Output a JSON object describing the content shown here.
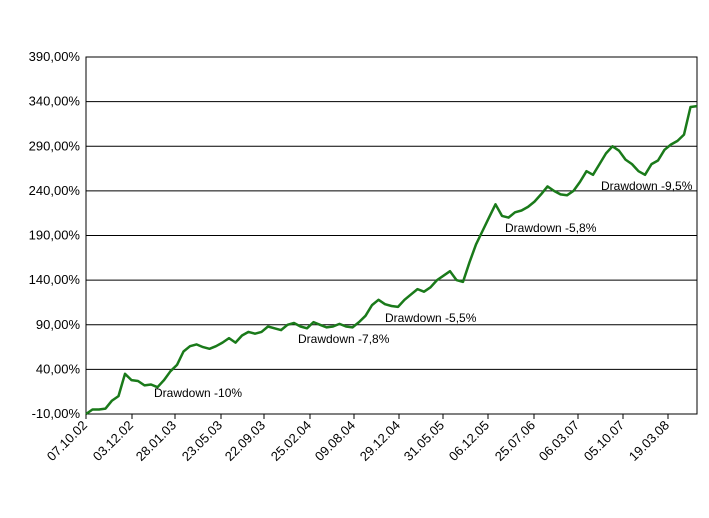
{
  "chart_data": {
    "type": "line",
    "title": "",
    "xlabel": "",
    "ylabel": "",
    "ylim": [
      -10,
      390
    ],
    "y_ticks": [
      "-10,00%",
      "40,00%",
      "90,00%",
      "140,00%",
      "190,00%",
      "240,00%",
      "290,00%",
      "340,00%",
      "390,00%"
    ],
    "x_ticks": [
      "07.10.02",
      "03.12.02",
      "28.01.03",
      "23.05.03",
      "22.09.03",
      "25.02.04",
      "09.08.04",
      "29.12.04",
      "31.05.05",
      "06.12.05",
      "25.07.06",
      "06.03.07",
      "05.10.07",
      "19.03.08"
    ],
    "grid": "horizontal",
    "line_color": "#1a7a1a",
    "series": [
      {
        "values": [
          -10,
          -5,
          -5,
          -4,
          5,
          10,
          35,
          28,
          27,
          22,
          23,
          20,
          28,
          38,
          45,
          60,
          66,
          68,
          65,
          63,
          66,
          70,
          75,
          70,
          78,
          82,
          80,
          82,
          88,
          86,
          84,
          90,
          92,
          88,
          86,
          93,
          90,
          87,
          88,
          91,
          88,
          87,
          93,
          100,
          112,
          118,
          113,
          111,
          110,
          118,
          124,
          130,
          127,
          132,
          140,
          145,
          150,
          140,
          138,
          160,
          180,
          195,
          210,
          225,
          212,
          210,
          216,
          218,
          222,
          228,
          236,
          245,
          240,
          236,
          235,
          240,
          250,
          262,
          258,
          270,
          282,
          290,
          285,
          275,
          270,
          262,
          258,
          270,
          274,
          286,
          292,
          296,
          303,
          334,
          335
        ]
      }
    ],
    "annotations": [
      "Drawdown -10%",
      "Drawdown -7,8%",
      "Drawdown -5,5%",
      "Drawdown -5,8%",
      "Drawdown -9,5%"
    ]
  }
}
